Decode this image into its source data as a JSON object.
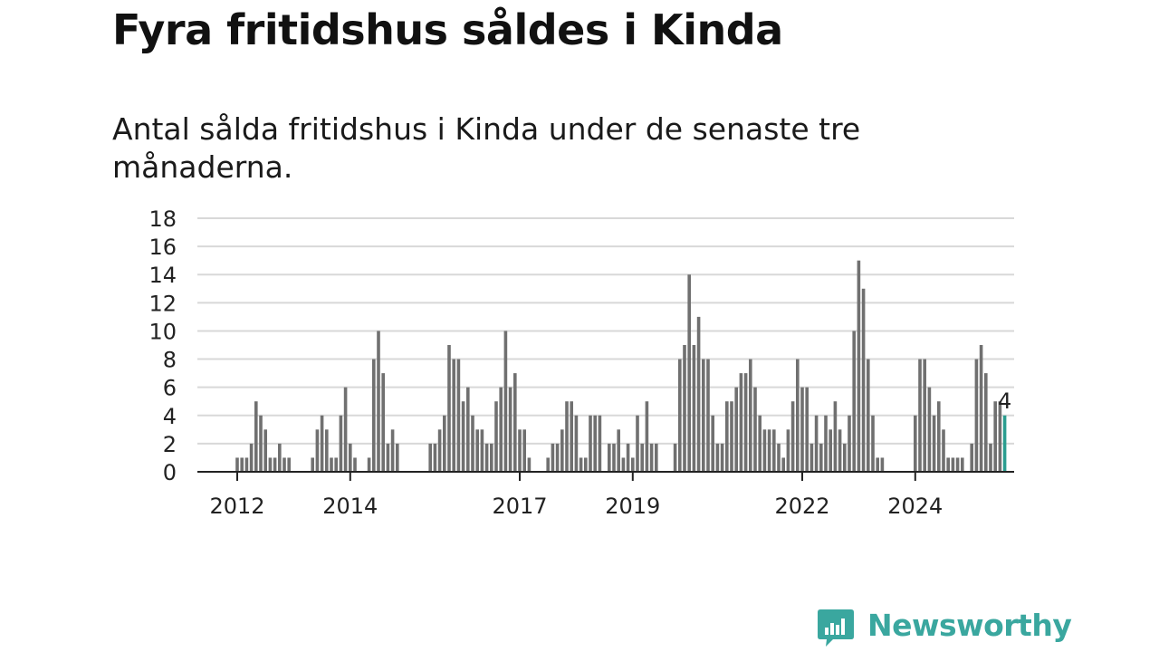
{
  "title": "Fyra fritidshus såldes i Kinda",
  "subtitle": "Antal sålda fritidshus i Kinda under de senaste tre månaderna.",
  "brand": {
    "name": "Newsworthy",
    "color": "#3aa79f",
    "icon": "newsworthy-chart-bubble-icon"
  },
  "colors": {
    "bar": "#707070",
    "highlight": "#2a9d8f",
    "grid": "#d8d8d8",
    "axis": "#222222"
  },
  "chart_data": {
    "type": "bar",
    "title": "Fyra fritidshus såldes i Kinda",
    "subtitle": "Antal sålda fritidshus i Kinda under de senaste tre månaderna.",
    "xlabel": "",
    "ylabel": "",
    "x_start": "2012-01",
    "x_ticks": [
      "2012",
      "2014",
      "2017",
      "2019",
      "2022",
      "2024"
    ],
    "y_ticks": [
      0,
      2,
      4,
      6,
      8,
      10,
      12,
      14,
      16,
      18
    ],
    "ylim": [
      0,
      18
    ],
    "grid": true,
    "last_value_label": "4",
    "values": [
      1,
      1,
      1,
      2,
      5,
      4,
      3,
      1,
      1,
      2,
      1,
      1,
      0,
      0,
      0,
      0,
      1,
      3,
      4,
      3,
      1,
      1,
      4,
      6,
      2,
      1,
      0,
      0,
      1,
      8,
      10,
      7,
      2,
      3,
      2,
      0,
      0,
      0,
      0,
      0,
      0,
      2,
      2,
      3,
      4,
      9,
      8,
      8,
      5,
      6,
      4,
      3,
      3,
      2,
      2,
      5,
      6,
      10,
      6,
      7,
      3,
      3,
      1,
      0,
      0,
      0,
      1,
      2,
      2,
      3,
      5,
      5,
      4,
      1,
      1,
      4,
      4,
      4,
      0,
      2,
      2,
      3,
      1,
      2,
      1,
      4,
      2,
      5,
      2,
      2,
      0,
      0,
      0,
      2,
      8,
      9,
      14,
      9,
      11,
      8,
      8,
      4,
      2,
      2,
      5,
      5,
      6,
      7,
      7,
      8,
      6,
      4,
      3,
      3,
      3,
      2,
      1,
      3,
      5,
      8,
      6,
      6,
      2,
      4,
      2,
      4,
      3,
      5,
      3,
      2,
      4,
      10,
      15,
      13,
      8,
      4,
      1,
      1,
      0,
      0,
      0,
      0,
      0,
      0,
      4,
      8,
      8,
      6,
      4,
      5,
      3,
      1,
      1,
      1,
      1,
      0,
      2,
      8,
      9,
      7,
      2,
      5,
      5,
      4
    ]
  }
}
